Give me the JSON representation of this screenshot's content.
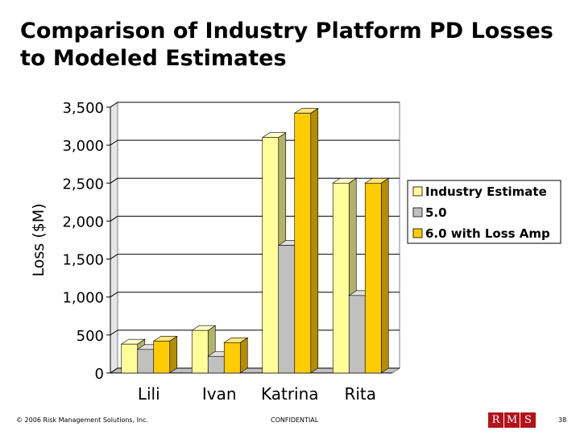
{
  "slide": {
    "title_line1": "Comparison of Industry Platform PD Losses",
    "title_line2": "to Modeled Estimates"
  },
  "footer": {
    "copyright": "© 2006 Risk Management Solutions, Inc.",
    "confidential": "CONFIDENTIAL",
    "logo_letters": [
      "R",
      "M",
      "S"
    ],
    "page_number": "38"
  },
  "colors": {
    "industry_front": "#ffff99",
    "industry_side": "#b2b26b",
    "industry_top": "#ffffcc",
    "v50_front": "#c0c0c0",
    "v50_side": "#868686",
    "v50_top": "#e0e0e0",
    "v60_front": "#ffcc00",
    "v60_side": "#b28e00",
    "v60_top": "#ffe580",
    "logo_red": "#b3121b"
  },
  "chart_data": {
    "type": "bar",
    "title": "",
    "xlabel": "",
    "ylabel": "Loss ($M)",
    "ylim": [
      0,
      3500
    ],
    "yticks": [
      0,
      500,
      1000,
      1500,
      2000,
      2500,
      3000,
      3500
    ],
    "ytick_labels": [
      "0",
      "500",
      "1,000",
      "1,500",
      "2,000",
      "2,500",
      "3,000",
      "3,500"
    ],
    "categories": [
      "Lili",
      "Ivan",
      "Katrina",
      "Rita"
    ],
    "grid": true,
    "legend_position": "right",
    "series": [
      {
        "name": "Industry Estimate",
        "values": [
          380,
          560,
          3100,
          2500
        ]
      },
      {
        "name": "5.0",
        "values": [
          310,
          220,
          1680,
          1020
        ]
      },
      {
        "name": "6.0 with Loss Amp",
        "values": [
          420,
          400,
          3420,
          2500
        ]
      }
    ]
  }
}
